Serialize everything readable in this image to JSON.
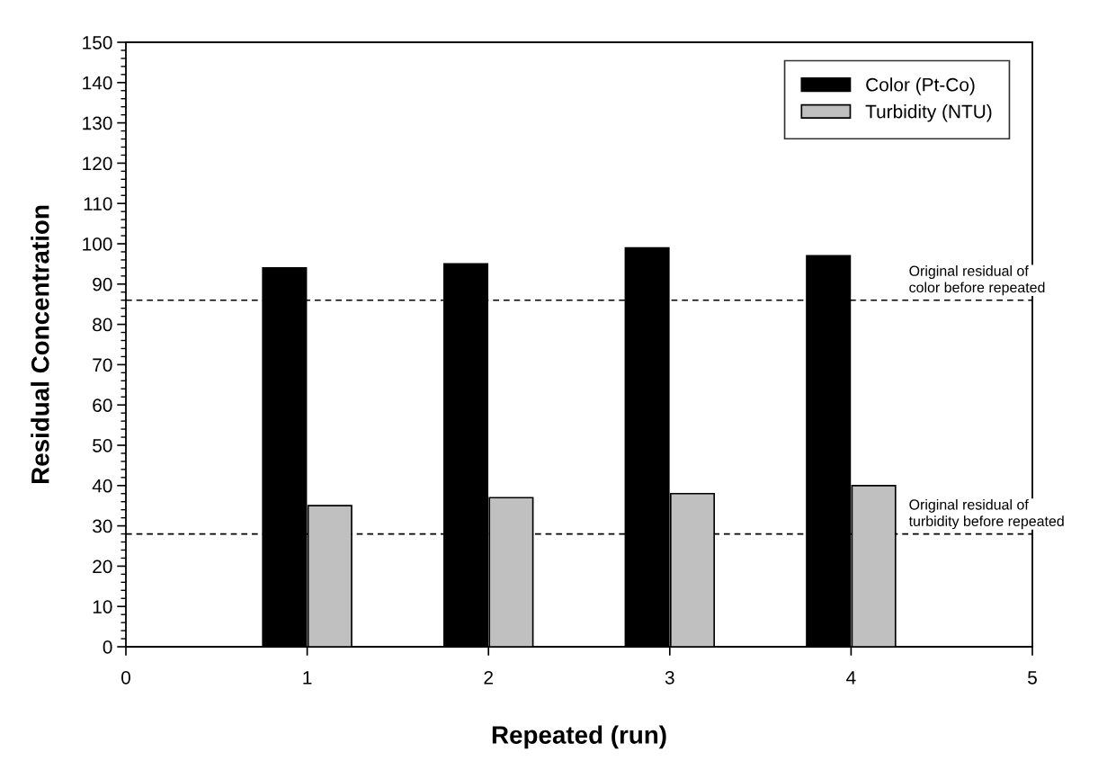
{
  "chart_data": {
    "type": "bar",
    "xlabel": "Repeated (run)",
    "ylabel": "Residual Concentration",
    "x": [
      1,
      2,
      3,
      4
    ],
    "series": [
      {
        "name": "Color (Pt-Co)",
        "color": "#000000",
        "values": [
          94,
          95,
          99,
          97
        ]
      },
      {
        "name": "Turbidity (NTU)",
        "color": "#c0c0c0",
        "values": [
          35,
          37,
          38,
          40
        ]
      }
    ],
    "xlim": [
      0,
      5
    ],
    "xticks": [
      0,
      1,
      2,
      3,
      4,
      5
    ],
    "ylim": [
      0,
      150
    ],
    "yticks": [
      0,
      10,
      20,
      30,
      40,
      50,
      60,
      70,
      80,
      90,
      100,
      110,
      120,
      130,
      140,
      150
    ],
    "ref_lines": [
      {
        "axis": "y",
        "value": 86,
        "label": "Original residual of\ncolor before repeated",
        "line_style": "dashed",
        "color": "#000000"
      },
      {
        "axis": "y",
        "value": 28,
        "label": "Original residual of\nturbidity before repeated",
        "line_style": "dashed",
        "color": "#000000"
      }
    ],
    "legend": "top right",
    "grid": false
  }
}
